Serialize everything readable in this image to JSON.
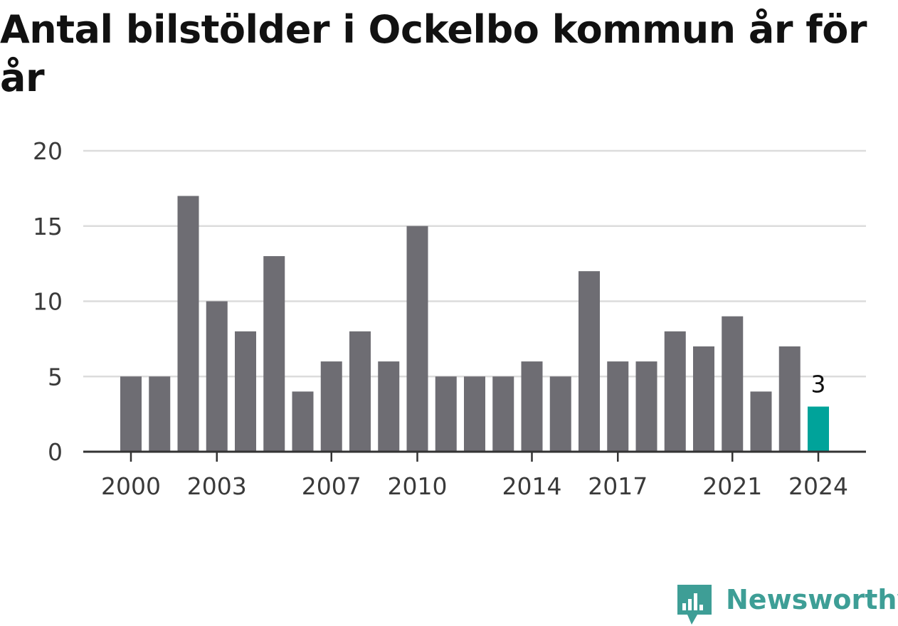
{
  "title": "Antal bilstölder i Ockelbo kommun år för år",
  "brand": {
    "name": "Newsworthy",
    "icon": "newsworthy-logo-icon",
    "color": "#3e9e96"
  },
  "chart_data": {
    "type": "bar",
    "title": "Antal bilstölder i Ockelbo kommun år för år",
    "xlabel": "",
    "ylabel": "",
    "categories": [
      "2000",
      "2001",
      "2002",
      "2003",
      "2004",
      "2005",
      "2006",
      "2007",
      "2008",
      "2009",
      "2010",
      "2011",
      "2012",
      "2013",
      "2014",
      "2015",
      "2016",
      "2017",
      "2018",
      "2019",
      "2020",
      "2021",
      "2022",
      "2023",
      "2024"
    ],
    "values": [
      5,
      5,
      17,
      10,
      8,
      13,
      4,
      6,
      8,
      6,
      15,
      5,
      5,
      5,
      6,
      5,
      12,
      6,
      6,
      8,
      7,
      9,
      4,
      7,
      3
    ],
    "x_tick_labels": [
      "2000",
      "2003",
      "2007",
      "2010",
      "2014",
      "2017",
      "2021",
      "2024"
    ],
    "y_ticks": [
      0,
      5,
      10,
      15,
      20
    ],
    "ylim": [
      0,
      20
    ],
    "grid": true,
    "legend": "none",
    "highlight": {
      "category": "2024",
      "value_label": "3"
    },
    "colors": {
      "bar": "#6e6d73",
      "highlight": "#00a39a",
      "grid": "#dcdcdc",
      "axis": "#333333",
      "tick_label": "#3a3a3a"
    }
  }
}
